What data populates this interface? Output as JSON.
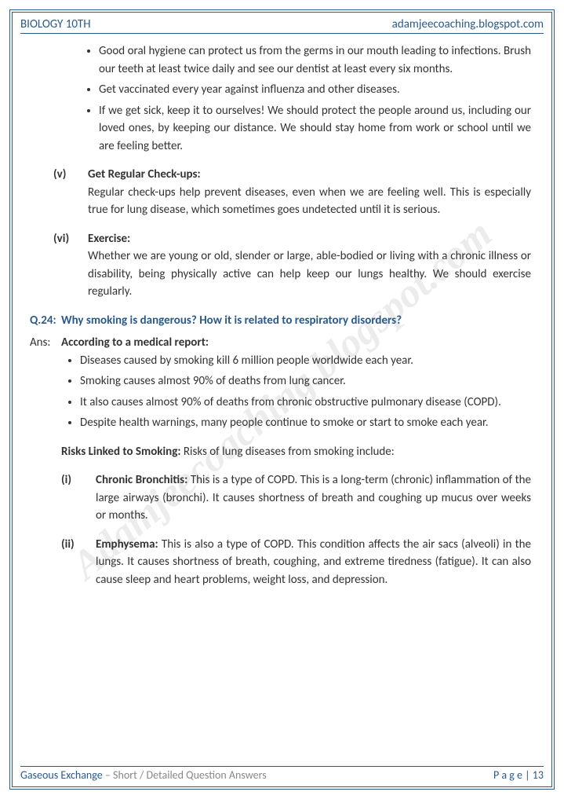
{
  "header": {
    "left": "BIOLOGY 10TH",
    "right": "adamjeecoaching.blogspot.com"
  },
  "footer": {
    "chapter": "Gaseous Exchange",
    "subtitle": " – Short / Detailed Question Answers",
    "page_label": "P a g e  | ",
    "page_num": "13"
  },
  "watermark": "Adamjeecoaching.blogspot.com",
  "top_bullets": [
    "Good oral hygiene can protect us from the germs in our mouth leading to infections. Brush our teeth at least twice daily and see our dentist at least every six months.",
    "Get vaccinated every year against influenza and other diseases.",
    "If we get sick, keep it to ourselves! We should protect the people around us, including our loved ones, by keeping our distance. We should stay home from work or school until we are feeling better."
  ],
  "sections": [
    {
      "num": "(v)",
      "title": "Get Regular Check-ups:",
      "text": "Regular check-ups help prevent diseases, even when we are feeling well. This is especially true for lung disease, which sometimes goes undetected until it is serious."
    },
    {
      "num": "(vi)",
      "title": "Exercise:",
      "text": "Whether we are young or old, slender or large, able-bodied or living with a chronic illness or disability, being physically active can help keep our lungs healthy. We should exercise regularly."
    }
  ],
  "question": {
    "label": "Q.24:",
    "text": "Why smoking is dangerous? How it is related to respiratory disorders?"
  },
  "answer": {
    "label": "Ans:",
    "intro": "According to a medical report:",
    "bullets": [
      "Diseases caused by smoking kill 6 million people worldwide each year.",
      "Smoking causes almost 90% of deaths from lung cancer.",
      "It also causes almost 90% of deaths from chronic obstructive pulmonary disease (COPD).",
      "Despite health warnings, many people continue to smoke or start to smoke each year."
    ],
    "risks_label": "Risks Linked to Smoking:",
    "risks_text": "  Risks of lung diseases from smoking include:",
    "items": [
      {
        "num": "(i)",
        "title": "Chronic Bronchitis:",
        "text": "  This is a type of COPD. This is a long-term (chronic) inflammation of the large airways (bronchi). It causes shortness of breath and coughing up mucus over weeks or months."
      },
      {
        "num": "(ii)",
        "title": "Emphysema:",
        "text": "  This is also a type of COPD. This condition affects the air sacs (alveoli) in the lungs. It causes shortness of breath, coughing, and extreme tiredness (fatigue). It can also cause sleep and heart problems, weight loss, and depression."
      }
    ]
  },
  "colors": {
    "accent": "#2a5a8a",
    "text": "#333333",
    "muted": "#888888"
  }
}
